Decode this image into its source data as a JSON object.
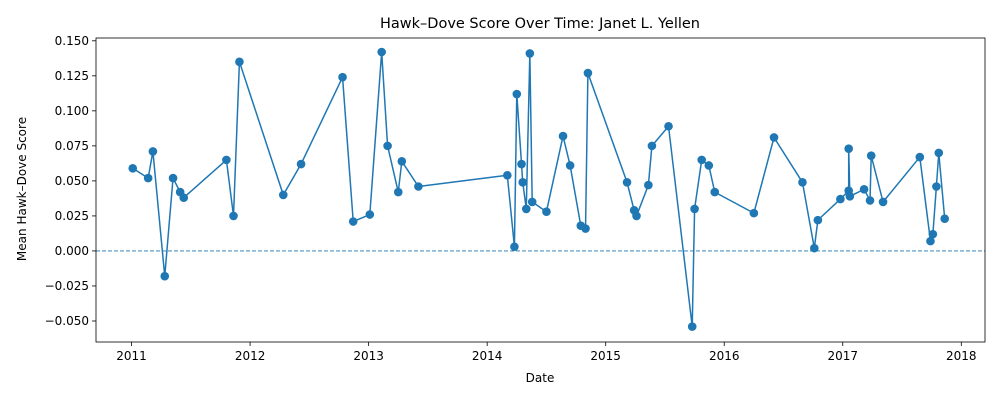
{
  "chart_data": {
    "type": "line",
    "title": "Hawk–Dove Score Over Time: Janet L. Yellen",
    "xlabel": "Date",
    "ylabel": "Mean Hawk–Dove Score",
    "xlim": [
      2010.7,
      2018.2
    ],
    "ylim": [
      -0.065,
      0.152
    ],
    "x_ticks": [
      "2011",
      "2012",
      "2013",
      "2014",
      "2015",
      "2016",
      "2017",
      "2018"
    ],
    "y_ticks": [
      "−0.050",
      "−0.025",
      "0.000",
      "0.025",
      "0.050",
      "0.075",
      "0.100",
      "0.125",
      "0.150"
    ],
    "grid": false,
    "reference_line": {
      "y": 0,
      "style": "dashed"
    },
    "colors": {
      "series": "#1f77b4"
    },
    "series": [
      {
        "x": [
          2011.01,
          2011.14,
          2011.18,
          2011.28,
          2011.35,
          2011.41,
          2011.44,
          2011.8,
          2011.86,
          2011.91,
          2012.28,
          2012.43,
          2012.78,
          2012.87,
          2013.01,
          2013.11,
          2013.16,
          2013.25,
          2013.28,
          2013.42,
          2014.17,
          2014.23,
          2014.25,
          2014.29,
          2014.3,
          2014.33,
          2014.36,
          2014.38,
          2014.5,
          2014.64,
          2014.7,
          2014.79,
          2014.83,
          2014.85,
          2015.18,
          2015.24,
          2015.26,
          2015.36,
          2015.39,
          2015.53,
          2015.73,
          2015.75,
          2015.81,
          2015.87,
          2015.92,
          2016.25,
          2016.42,
          2016.66,
          2016.76,
          2016.79,
          2016.98,
          2017.05,
          2017.05,
          2017.06,
          2017.18,
          2017.23,
          2017.24,
          2017.34,
          2017.65,
          2017.74,
          2017.76,
          2017.79,
          2017.81,
          2017.86
        ],
        "y": [
          0.059,
          0.052,
          0.071,
          -0.018,
          0.052,
          0.042,
          0.038,
          0.065,
          0.025,
          0.135,
          0.04,
          0.062,
          0.124,
          0.021,
          0.026,
          0.142,
          0.075,
          0.042,
          0.064,
          0.046,
          0.054,
          0.003,
          0.112,
          0.062,
          0.049,
          0.03,
          0.141,
          0.035,
          0.028,
          0.082,
          0.061,
          0.018,
          0.016,
          0.127,
          0.049,
          0.029,
          0.025,
          0.047,
          0.075,
          0.089,
          -0.054,
          0.03,
          0.065,
          0.061,
          0.042,
          0.027,
          0.081,
          0.049,
          0.002,
          0.022,
          0.037,
          0.043,
          0.073,
          0.039,
          0.044,
          0.036,
          0.068,
          0.035,
          0.067,
          0.007,
          0.012,
          0.046,
          0.07,
          0.023
        ]
      }
    ]
  }
}
